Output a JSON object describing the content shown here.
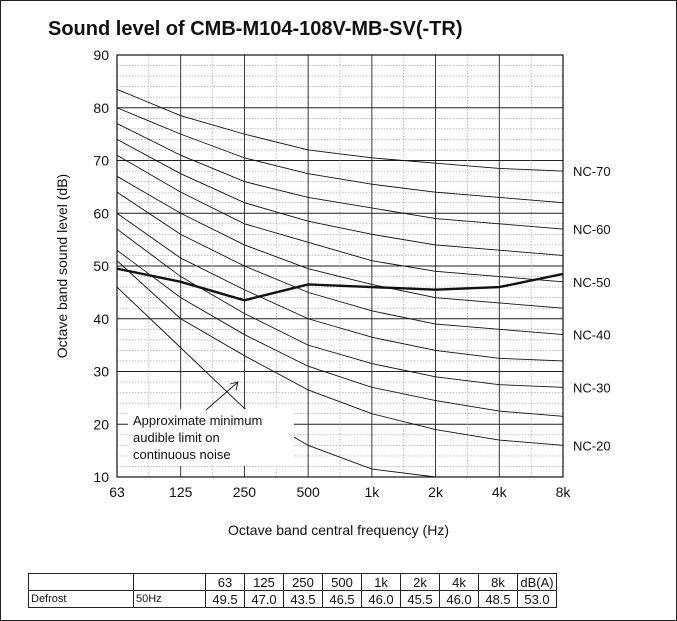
{
  "chart_data": {
    "type": "line",
    "title": "Sound level of CMB-M104-108V-MB-SV(-TR)",
    "xlabel": "Octave band central frequency (Hz)",
    "ylabel": "Octave band sound level (dB)",
    "categories": [
      "63",
      "125",
      "250",
      "500",
      "1k",
      "2k",
      "4k",
      "8k"
    ],
    "ylim": [
      10,
      90
    ],
    "yticks": [
      "10",
      "20",
      "30",
      "40",
      "50",
      "60",
      "70",
      "80",
      "90"
    ],
    "grid": true,
    "series": [
      {
        "name": "Defrost 50Hz",
        "values": [
          49.5,
          47.0,
          43.5,
          46.5,
          46.0,
          45.5,
          46.0,
          48.5
        ]
      }
    ],
    "nc_curves": [
      {
        "label": "",
        "values": [
          46,
          34.5,
          23,
          16,
          11.5,
          10,
          null,
          null
        ]
      },
      {
        "label": "NC-20",
        "values": [
          51,
          40,
          33,
          26.5,
          22,
          19,
          17,
          16
        ]
      },
      {
        "label": "",
        "values": [
          53,
          44,
          37,
          31,
          27,
          24.5,
          22.5,
          21.5
        ]
      },
      {
        "label": "NC-30",
        "values": [
          57,
          48,
          41,
          35,
          31.5,
          29,
          27.5,
          27
        ]
      },
      {
        "label": "",
        "values": [
          60,
          51.5,
          45.5,
          40,
          36.5,
          34,
          32.5,
          32
        ]
      },
      {
        "label": "NC-40",
        "values": [
          64,
          56,
          50,
          45,
          41.5,
          39,
          38,
          37
        ]
      },
      {
        "label": "",
        "values": [
          67,
          60,
          54,
          49.5,
          46.5,
          44,
          43,
          42
        ]
      },
      {
        "label": "NC-50",
        "values": [
          71,
          64,
          58,
          54.5,
          51,
          49,
          48,
          47
        ]
      },
      {
        "label": "",
        "values": [
          74,
          67.5,
          62,
          58.5,
          56,
          54,
          53,
          52
        ]
      },
      {
        "label": "NC-60",
        "values": [
          77,
          71,
          66,
          63,
          61,
          59,
          58,
          57
        ]
      },
      {
        "label": "",
        "values": [
          80,
          75,
          70.5,
          67.5,
          65.5,
          64,
          63,
          62
        ]
      },
      {
        "label": "NC-70",
        "values": [
          83.5,
          78.5,
          75,
          72,
          70.5,
          69.5,
          68.5,
          68
        ]
      }
    ],
    "annotation": [
      "Approximate minimum",
      "audible limit on",
      "continuous noise"
    ]
  },
  "table": {
    "headers": [
      "",
      "",
      "63",
      "125",
      "250",
      "500",
      "1k",
      "2k",
      "4k",
      "8k",
      "dB(A)"
    ],
    "rows": [
      {
        "mode": "Defrost",
        "freq": "50Hz",
        "cells": [
          "49.5",
          "47.0",
          "43.5",
          "46.5",
          "46.0",
          "45.5",
          "46.0",
          "48.5",
          "53.0"
        ]
      }
    ]
  }
}
